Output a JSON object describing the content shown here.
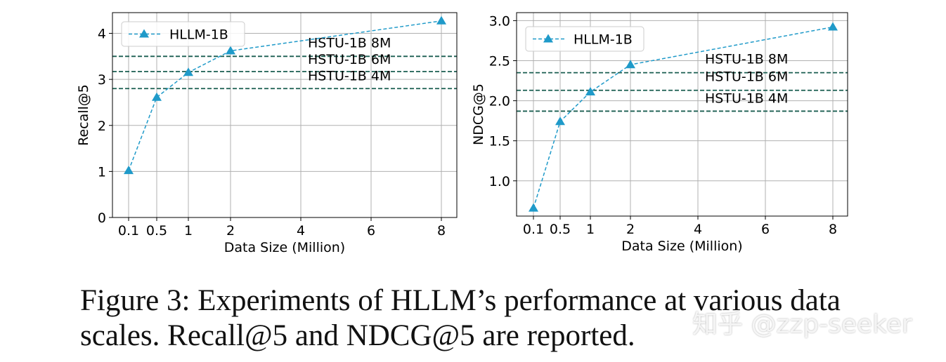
{
  "chart_data": [
    {
      "type": "line",
      "xlabel": "Data Size (Million)",
      "ylabel": "Recall@5",
      "x_ticks": [
        "0.1",
        "0.5",
        "1",
        "2",
        "4",
        "6",
        "8"
      ],
      "y_ticks": [
        "0",
        "1",
        "2",
        "3",
        "4"
      ],
      "ylim": [
        0,
        4.45
      ],
      "grid": true,
      "legend_position": "top-left",
      "series": [
        {
          "name": "HLLM-1B",
          "x": [
            0.1,
            0.5,
            1,
            2,
            8
          ],
          "y": [
            1.02,
            2.61,
            3.15,
            3.62,
            4.27
          ],
          "color": "#1f9ac9",
          "marker": "triangle",
          "linestyle": "dashed"
        }
      ],
      "reference_lines": [
        {
          "label": "HSTU-1B 8M",
          "y": 3.5,
          "color": "#1a5e50"
        },
        {
          "label": "HSTU-1B 6M",
          "y": 3.17,
          "color": "#1a5e50"
        },
        {
          "label": "HSTU-1B 4M",
          "y": 2.8,
          "color": "#1a5e50"
        }
      ]
    },
    {
      "type": "line",
      "xlabel": "Data Size (Million)",
      "ylabel": "NDCG@5",
      "x_ticks": [
        "0.1",
        "0.5",
        "1",
        "2",
        "4",
        "6",
        "8"
      ],
      "y_ticks": [
        "1.0",
        "1.5",
        "2.0",
        "2.5",
        "3.0"
      ],
      "ylim": [
        0.56,
        3.1
      ],
      "grid": true,
      "legend_position": "top-left",
      "series": [
        {
          "name": "HLLM-1B",
          "x": [
            0.1,
            0.5,
            1,
            2,
            8
          ],
          "y": [
            0.66,
            1.74,
            2.11,
            2.45,
            2.92
          ],
          "color": "#1f9ac9",
          "marker": "triangle",
          "linestyle": "dashed"
        }
      ],
      "reference_lines": [
        {
          "label": "HSTU-1B 8M",
          "y": 2.35,
          "color": "#1a5e50"
        },
        {
          "label": "HSTU-1B 6M",
          "y": 2.13,
          "color": "#1a5e50"
        },
        {
          "label": "HSTU-1B 4M",
          "y": 1.87,
          "color": "#1a5e50"
        }
      ]
    }
  ],
  "caption": "Figure 3: Experiments of HLLM’s performance at various data scales. Recall@5 and NDCG@5 are reported.",
  "watermark": "知乎 @zzp-seeker"
}
